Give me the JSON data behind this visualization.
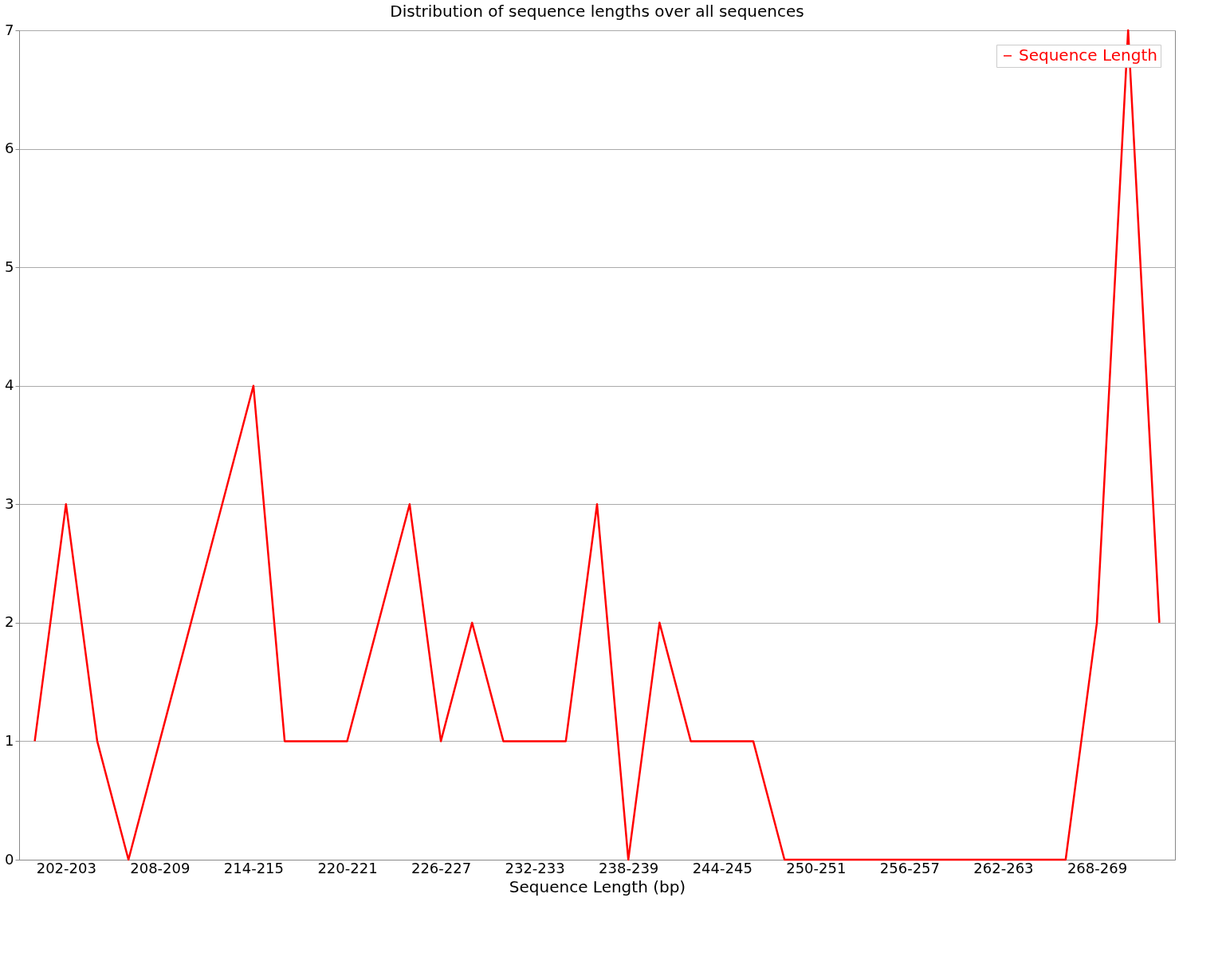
{
  "chart_data": {
    "type": "line",
    "title": "Distribution of sequence lengths over all sequences",
    "xlabel": "Sequence Length (bp)",
    "categories": [
      null,
      "202-203",
      null,
      null,
      "208-209",
      null,
      null,
      "214-215",
      null,
      null,
      "220-221",
      null,
      null,
      "226-227",
      null,
      null,
      "232-233",
      null,
      null,
      "238-239",
      null,
      null,
      "244-245",
      null,
      null,
      "250-251",
      null,
      null,
      "256-257",
      null,
      null,
      "262-263",
      null,
      null,
      "268-269",
      null,
      null
    ],
    "series": [
      {
        "name": "Sequence Length",
        "color": "#ff0000",
        "values": [
          1,
          3,
          1,
          0,
          1,
          2,
          3,
          4,
          1,
          1,
          1,
          2,
          3,
          1,
          2,
          1,
          1,
          1,
          3,
          0,
          2,
          1,
          1,
          1,
          0,
          0,
          0,
          0,
          0,
          0,
          0,
          0,
          0,
          0,
          2,
          7,
          2
        ]
      }
    ],
    "ylim": [
      0,
      7
    ],
    "yticks": [
      0,
      1,
      2,
      3,
      4,
      5,
      6,
      7
    ],
    "grid": "y",
    "legend": "top right",
    "line_style": "solid",
    "marker": "none"
  }
}
